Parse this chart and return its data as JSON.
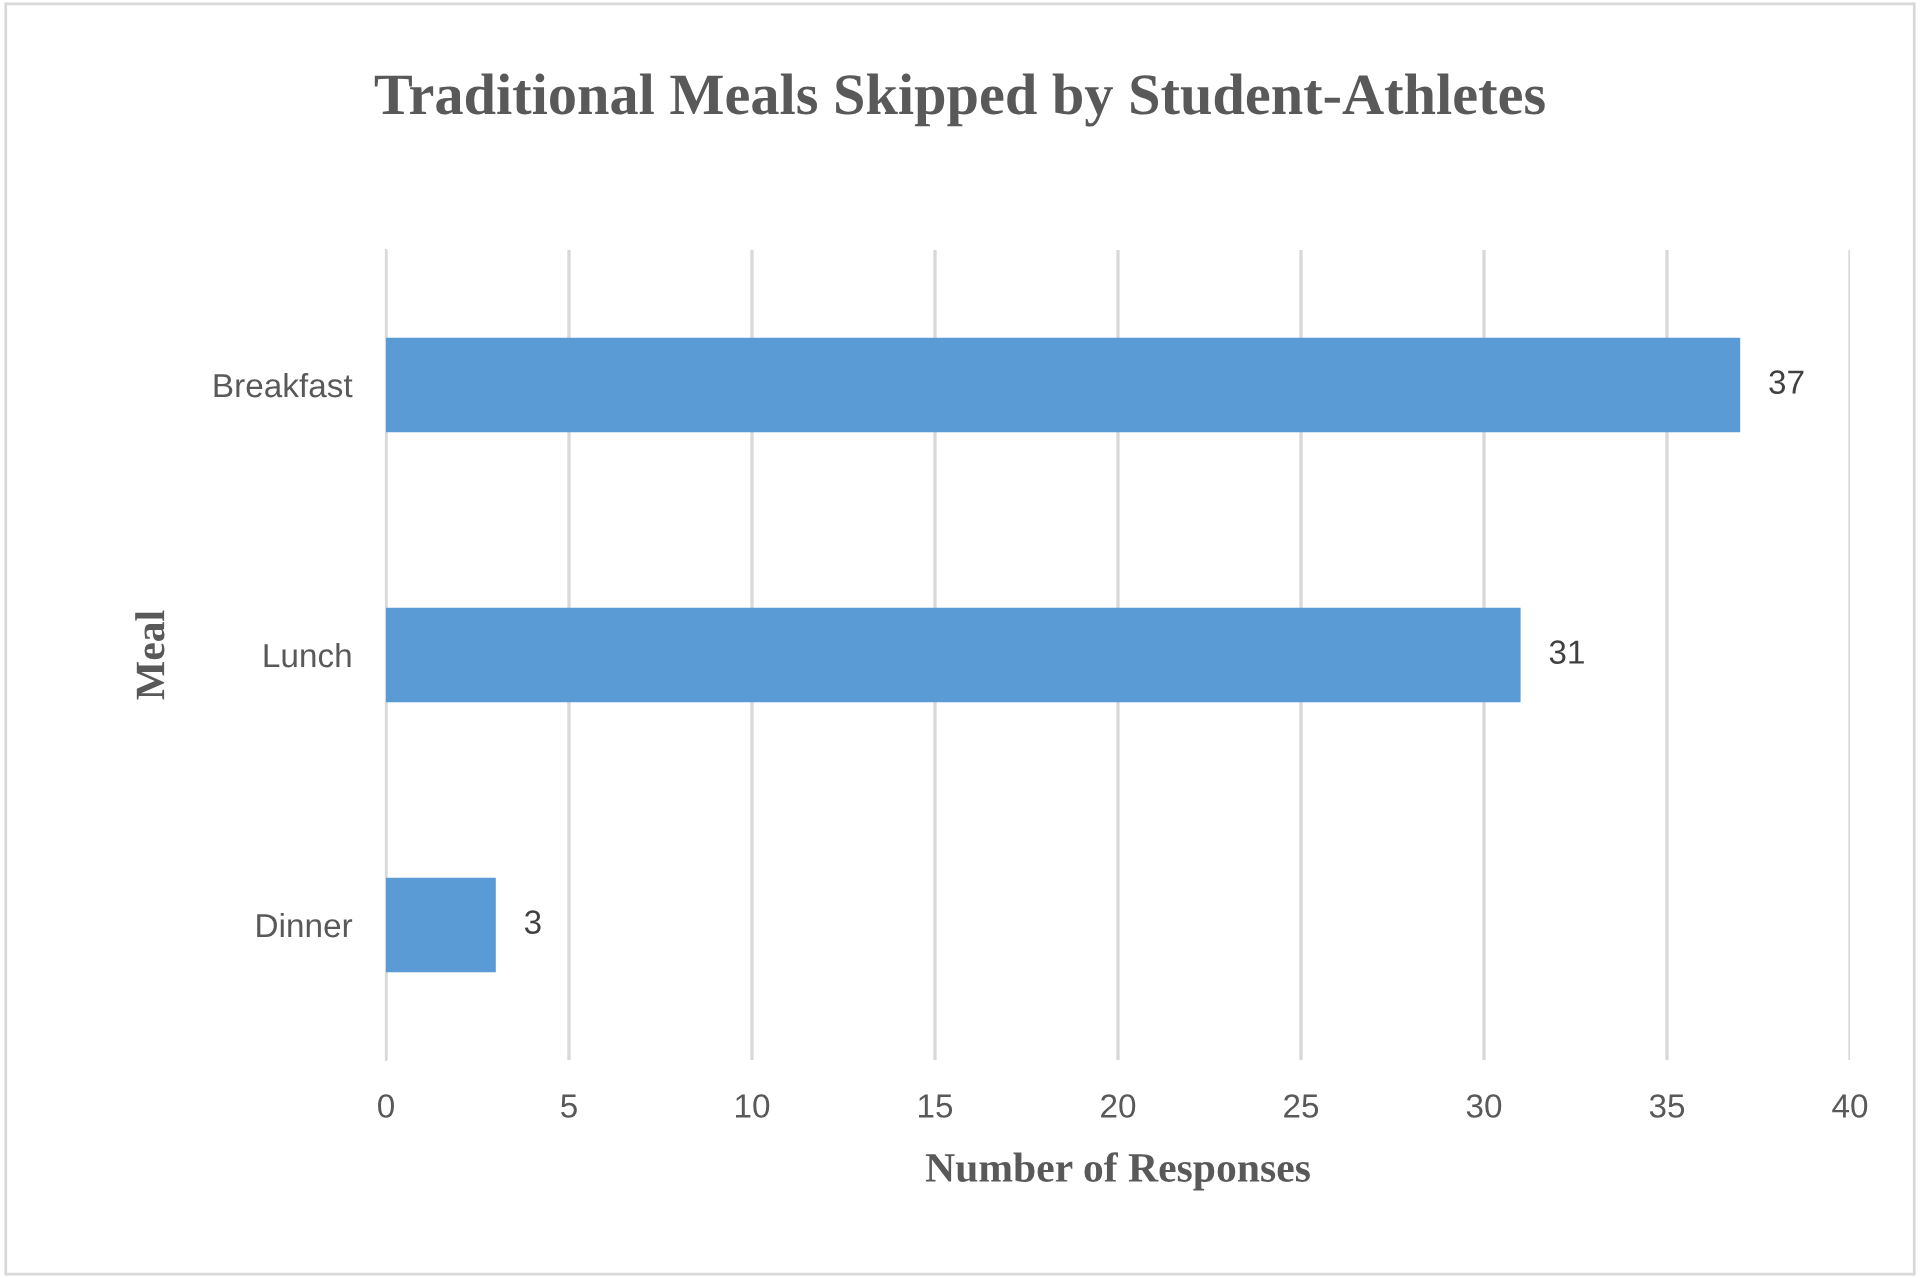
{
  "chart_data": {
    "type": "bar",
    "orientation": "horizontal",
    "title": "Traditional Meals Skipped by Student-Athletes",
    "xlabel": "Number of Responses",
    "ylabel": "Meal",
    "categories": [
      "Breakfast",
      "Lunch",
      "Dinner"
    ],
    "series": [
      {
        "color": "#5b9bd5",
        "values": [
          37,
          31,
          3
        ]
      }
    ],
    "xlim": [
      0,
      40
    ],
    "xticks": [
      0,
      5,
      10,
      15,
      20,
      25,
      30,
      35,
      40
    ],
    "grid": "x",
    "data_labels": true,
    "legend": false
  }
}
